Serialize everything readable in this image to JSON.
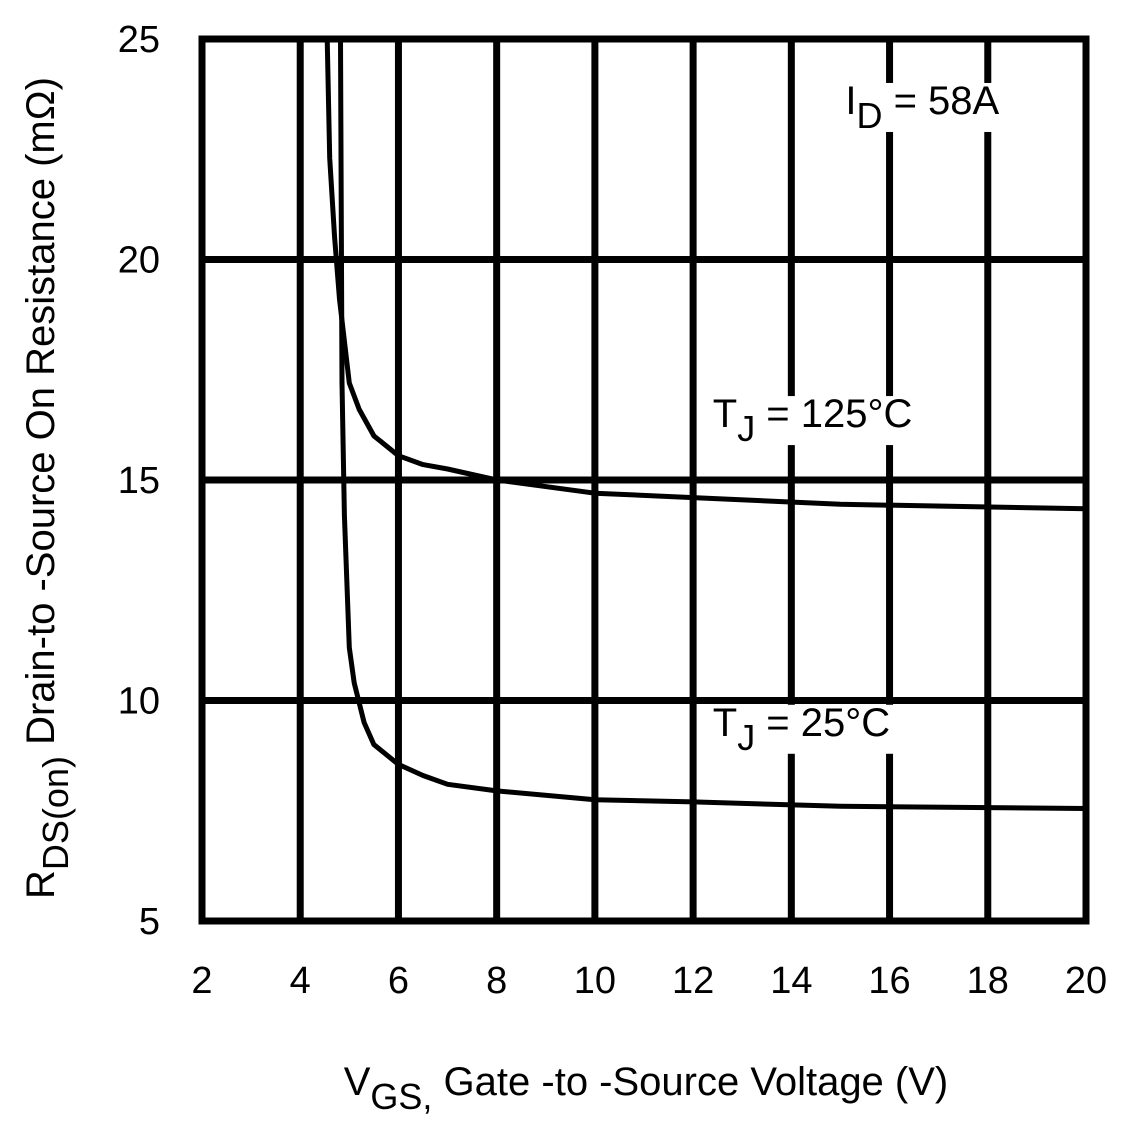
{
  "chart_data": {
    "type": "line",
    "xlim": [
      2,
      20
    ],
    "ylim": [
      5,
      25
    ],
    "x_ticks": [
      2,
      4,
      6,
      8,
      10,
      12,
      14,
      16,
      18,
      20
    ],
    "y_ticks": [
      5,
      10,
      15,
      20,
      25
    ],
    "x_tick_labels": [
      "2",
      "4",
      "6",
      "8",
      "10",
      "12",
      "14",
      "16",
      "18",
      "20"
    ],
    "y_tick_labels": [
      "5",
      "10",
      "15",
      "20",
      "25"
    ],
    "grid": true,
    "xlabel": {
      "main": "V",
      "sub": "GS,",
      "rest": " Gate -to -Source Voltage  (V)"
    },
    "ylabel": {
      "main": "R",
      "sub": "DS(on)",
      "rest": "  Drain-to -Source On Resistance (mΩ)"
    },
    "annotations": [
      {
        "main": "I",
        "sub": "D",
        "rest": " = 58A",
        "x": 15.1,
        "y": 23.3
      },
      {
        "main": "T",
        "sub": "J",
        "rest": " = 125°C",
        "x": 12.4,
        "y": 16.2
      },
      {
        "main": "T",
        "sub": "J",
        "rest": " = 25°C",
        "x": 12.4,
        "y": 9.2
      }
    ],
    "series": [
      {
        "x": [
          4.55,
          4.6,
          4.7,
          4.8,
          5.0,
          5.2,
          5.5,
          6.0,
          6.5,
          7.0,
          8.0,
          10.0,
          12.0,
          15.0,
          20.0
        ],
        "y": [
          25.0,
          22.3,
          20.5,
          19.1,
          17.2,
          16.6,
          16.0,
          15.55,
          15.35,
          15.25,
          15.0,
          14.7,
          14.6,
          14.45,
          14.35
        ]
      },
      {
        "x": [
          4.82,
          4.85,
          4.9,
          5.0,
          5.1,
          5.3,
          5.5,
          6.0,
          6.5,
          7.0,
          8.0,
          10.0,
          12.0,
          15.0,
          20.0
        ],
        "y": [
          25.0,
          17.2,
          14.2,
          11.2,
          10.4,
          9.5,
          9.0,
          8.55,
          8.3,
          8.1,
          7.95,
          7.75,
          7.7,
          7.6,
          7.55
        ]
      }
    ]
  }
}
